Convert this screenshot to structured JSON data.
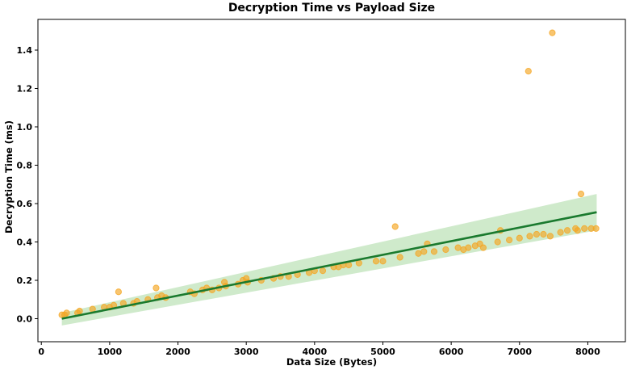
{
  "chart_data": {
    "type": "scatter",
    "title": "Decryption Time vs Payload Size",
    "xlabel": "Data Size (Bytes)",
    "ylabel": "Decryption Time (ms)",
    "xlim": [
      -50,
      8550
    ],
    "ylim": [
      -0.12,
      1.56
    ],
    "x_ticks": [
      0,
      1000,
      2000,
      3000,
      4000,
      5000,
      6000,
      7000,
      8000
    ],
    "y_ticks": [
      0.0,
      0.2,
      0.4,
      0.6,
      0.8,
      1.0,
      1.2,
      1.4
    ],
    "grid": false,
    "legend": "none",
    "colors": {
      "points": "#f5a623",
      "fit_line": "#1a7a2e",
      "confidence_band": "#a8d8a0"
    },
    "series": [
      {
        "kind": "scatter",
        "points": [
          [
            300,
            0.02
          ],
          [
            340,
            0.02
          ],
          [
            370,
            0.03
          ],
          [
            530,
            0.03
          ],
          [
            560,
            0.04
          ],
          [
            750,
            0.05
          ],
          [
            920,
            0.06
          ],
          [
            1000,
            0.06
          ],
          [
            1060,
            0.07
          ],
          [
            1130,
            0.14
          ],
          [
            1200,
            0.08
          ],
          [
            1350,
            0.08
          ],
          [
            1400,
            0.09
          ],
          [
            1560,
            0.1
          ],
          [
            1680,
            0.16
          ],
          [
            1700,
            0.11
          ],
          [
            1760,
            0.12
          ],
          [
            1820,
            0.11
          ],
          [
            2180,
            0.14
          ],
          [
            2240,
            0.13
          ],
          [
            2360,
            0.15
          ],
          [
            2420,
            0.16
          ],
          [
            2500,
            0.15
          ],
          [
            2600,
            0.16
          ],
          [
            2680,
            0.19
          ],
          [
            2700,
            0.17
          ],
          [
            2880,
            0.18
          ],
          [
            2950,
            0.2
          ],
          [
            3000,
            0.21
          ],
          [
            3020,
            0.19
          ],
          [
            3220,
            0.2
          ],
          [
            3400,
            0.21
          ],
          [
            3500,
            0.22
          ],
          [
            3620,
            0.22
          ],
          [
            3750,
            0.23
          ],
          [
            3920,
            0.24
          ],
          [
            4000,
            0.25
          ],
          [
            4120,
            0.25
          ],
          [
            4280,
            0.27
          ],
          [
            4350,
            0.27
          ],
          [
            4420,
            0.28
          ],
          [
            4500,
            0.28
          ],
          [
            4650,
            0.29
          ],
          [
            4900,
            0.3
          ],
          [
            5000,
            0.3
          ],
          [
            5180,
            0.48
          ],
          [
            5250,
            0.32
          ],
          [
            5520,
            0.34
          ],
          [
            5600,
            0.35
          ],
          [
            5650,
            0.39
          ],
          [
            5750,
            0.35
          ],
          [
            5920,
            0.36
          ],
          [
            6100,
            0.37
          ],
          [
            6180,
            0.36
          ],
          [
            6250,
            0.37
          ],
          [
            6350,
            0.38
          ],
          [
            6420,
            0.39
          ],
          [
            6470,
            0.37
          ],
          [
            6680,
            0.4
          ],
          [
            6720,
            0.46
          ],
          [
            6850,
            0.41
          ],
          [
            7000,
            0.42
          ],
          [
            7130,
            1.29
          ],
          [
            7150,
            0.43
          ],
          [
            7250,
            0.44
          ],
          [
            7350,
            0.44
          ],
          [
            7450,
            0.43
          ],
          [
            7480,
            1.49
          ],
          [
            7600,
            0.45
          ],
          [
            7700,
            0.46
          ],
          [
            7820,
            0.47
          ],
          [
            7850,
            0.46
          ],
          [
            7900,
            0.65
          ],
          [
            7950,
            0.47
          ],
          [
            8050,
            0.47
          ],
          [
            8120,
            0.47
          ]
        ]
      },
      {
        "kind": "regression_line",
        "x": [
          300,
          8130
        ],
        "y": [
          0.0,
          0.555
        ]
      },
      {
        "kind": "confidence_band",
        "x": [
          300,
          8130
        ],
        "lower": [
          -0.035,
          0.46
        ],
        "upper": [
          0.03,
          0.65
        ]
      }
    ]
  }
}
